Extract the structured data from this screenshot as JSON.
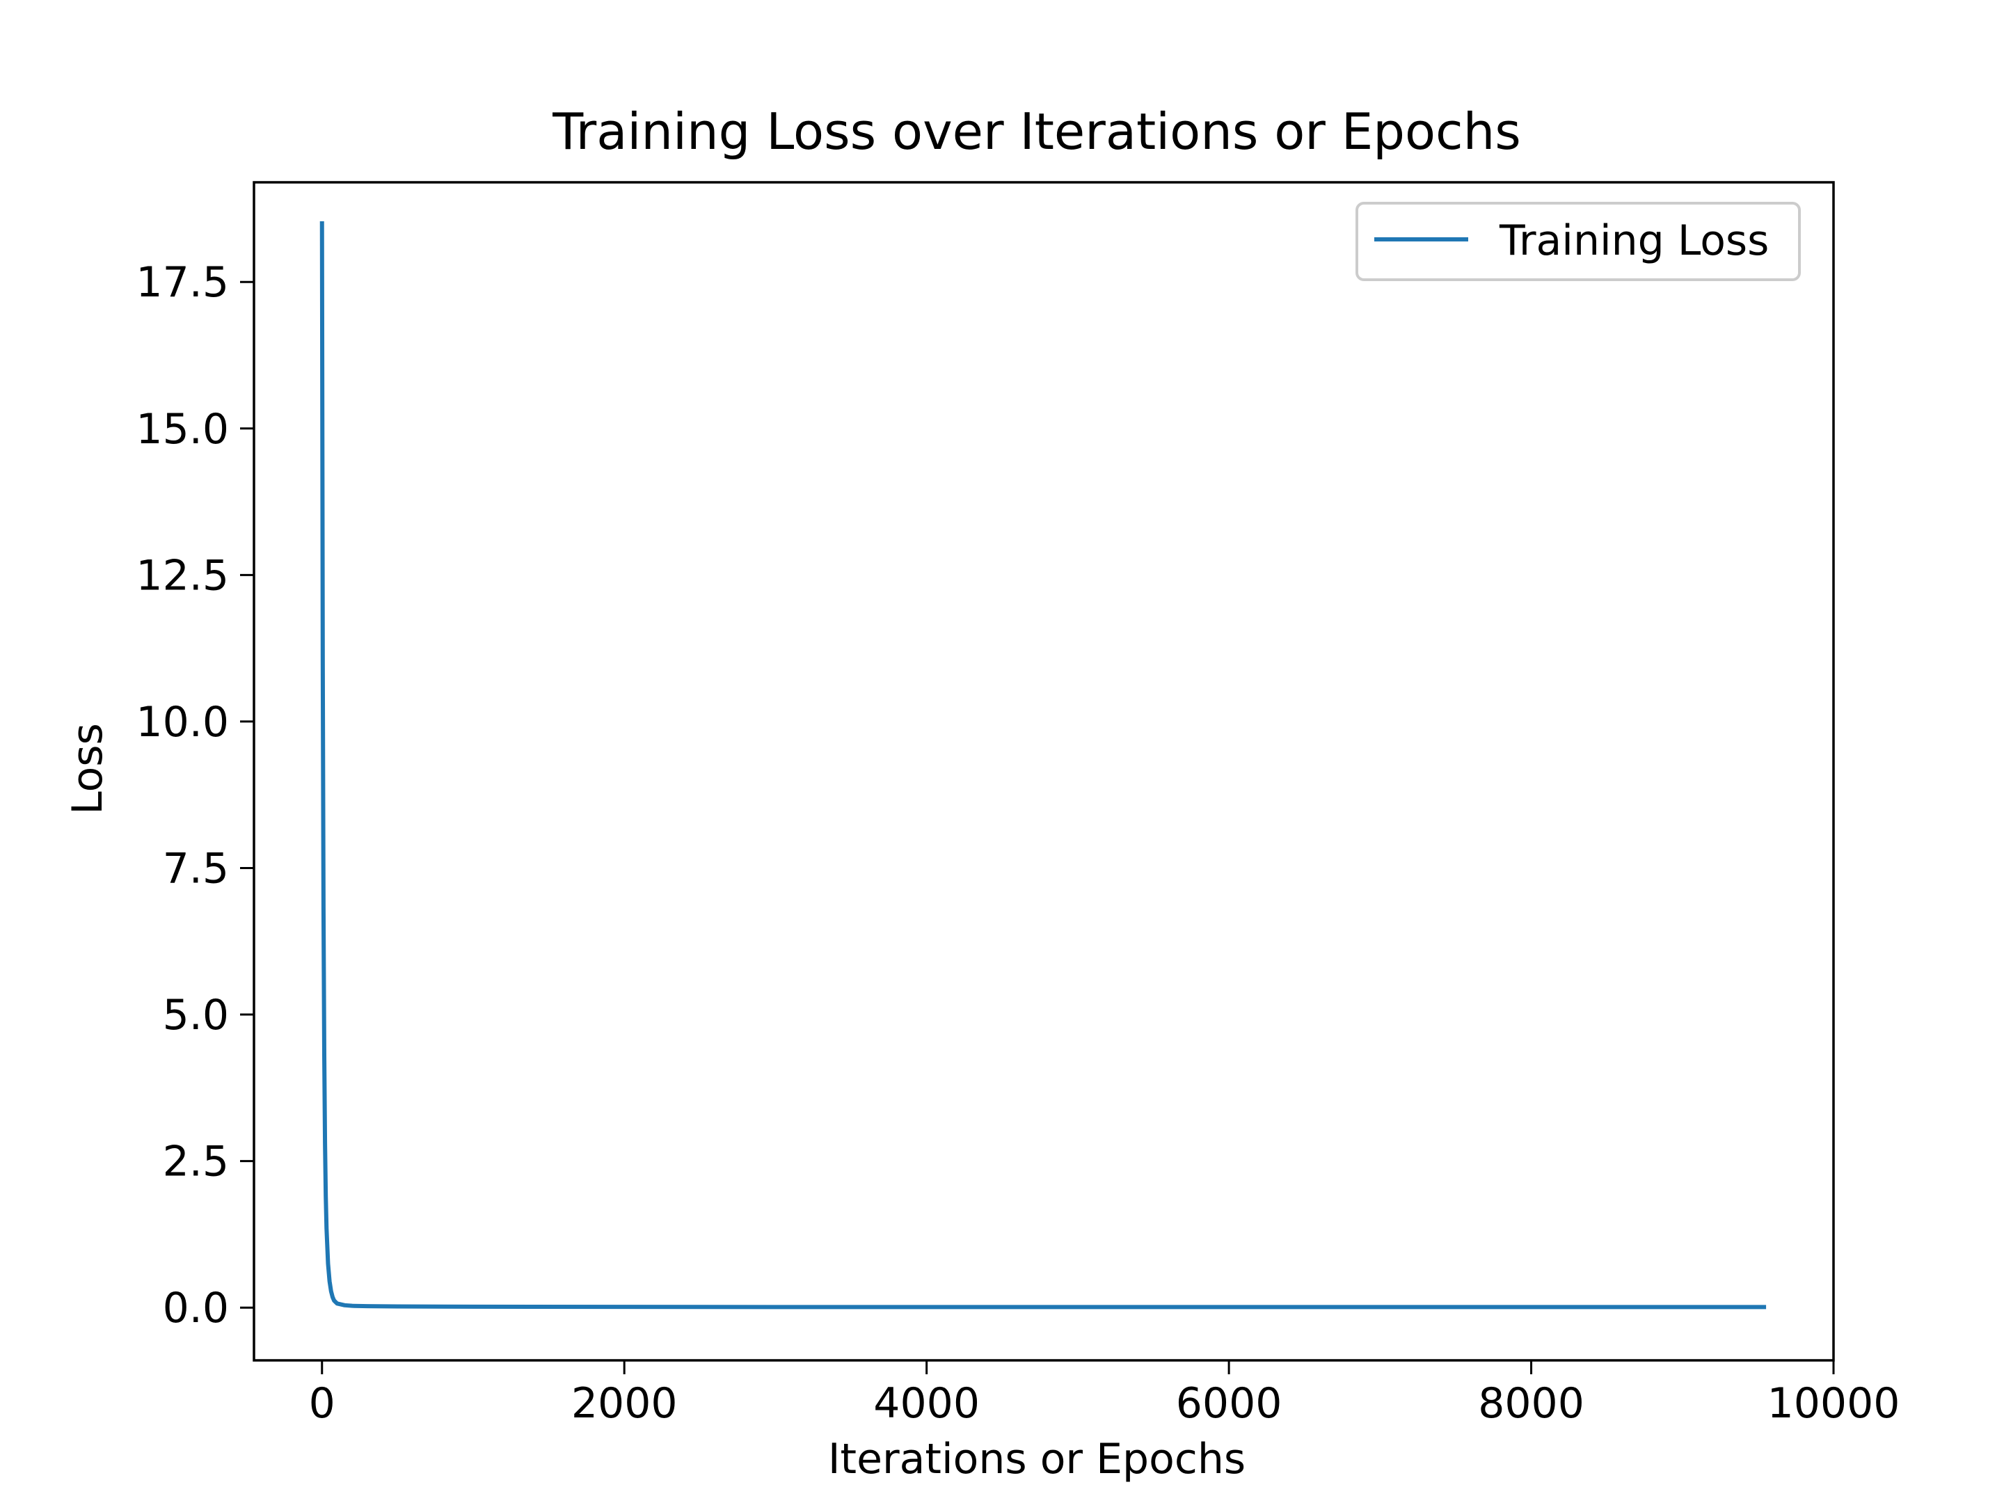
{
  "chart_data": {
    "type": "line",
    "title": "Training Loss over Iterations or Epochs",
    "xlabel": "Iterations or Epochs",
    "ylabel": "Loss",
    "xlim": [
      -450,
      10000
    ],
    "ylim": [
      -0.9,
      19.2
    ],
    "xticks": [
      0,
      2000,
      4000,
      6000,
      8000,
      10000
    ],
    "xtick_labels": [
      "0",
      "2000",
      "4000",
      "6000",
      "8000",
      "10000"
    ],
    "yticks": [
      0.0,
      2.5,
      5.0,
      7.5,
      10.0,
      12.5,
      15.0,
      17.5
    ],
    "ytick_labels": [
      "0.0",
      "2.5",
      "5.0",
      "7.5",
      "10.0",
      "12.5",
      "15.0",
      "17.5"
    ],
    "grid": false,
    "legend_position": "top-right",
    "series": [
      {
        "name": "Training Loss",
        "color": "#1f77b4",
        "x": [
          0,
          5,
          10,
          15,
          20,
          25,
          30,
          40,
          50,
          60,
          70,
          80,
          100,
          150,
          200,
          300,
          500,
          1000,
          2000,
          3000,
          4000,
          5000,
          6000,
          7000,
          8000,
          9000,
          9540
        ],
        "values": [
          18.5,
          11.0,
          6.8,
          4.3,
          2.8,
          1.9,
          1.35,
          0.75,
          0.45,
          0.28,
          0.18,
          0.12,
          0.07,
          0.04,
          0.03,
          0.025,
          0.02,
          0.015,
          0.012,
          0.01,
          0.01,
          0.01,
          0.01,
          0.01,
          0.01,
          0.01,
          0.01
        ]
      }
    ]
  }
}
